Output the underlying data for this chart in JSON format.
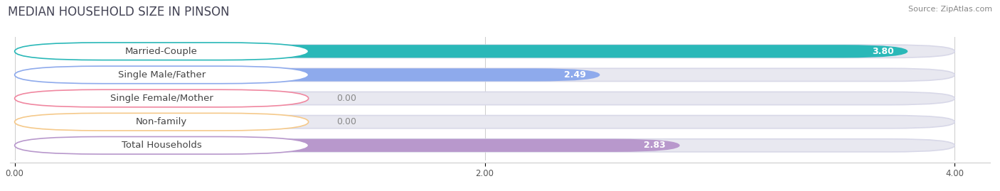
{
  "title": "MEDIAN HOUSEHOLD SIZE IN PINSON",
  "source": "Source: ZipAtlas.com",
  "categories": [
    "Married-Couple",
    "Single Male/Father",
    "Single Female/Mother",
    "Non-family",
    "Total Households"
  ],
  "values": [
    3.8,
    2.49,
    0.0,
    0.0,
    2.83
  ],
  "bar_colors": [
    "#2ab8b8",
    "#8eaaec",
    "#f087a0",
    "#f5c98a",
    "#b898cc"
  ],
  "bar_bg_color": "#e8e8f0",
  "xlim": [
    0,
    4.0
  ],
  "xticks": [
    0.0,
    2.0,
    4.0
  ],
  "xtick_labels": [
    "0.00",
    "2.00",
    "4.00"
  ],
  "label_fontsize": 9.5,
  "value_fontsize": 9.0,
  "title_fontsize": 12,
  "background_color": "#ffffff",
  "bar_height": 0.55,
  "pill_bg": "#ffffff",
  "pill_border_colors": [
    "#2ab8b8",
    "#8eaaec",
    "#f087a0",
    "#f5c98a",
    "#b898cc"
  ]
}
